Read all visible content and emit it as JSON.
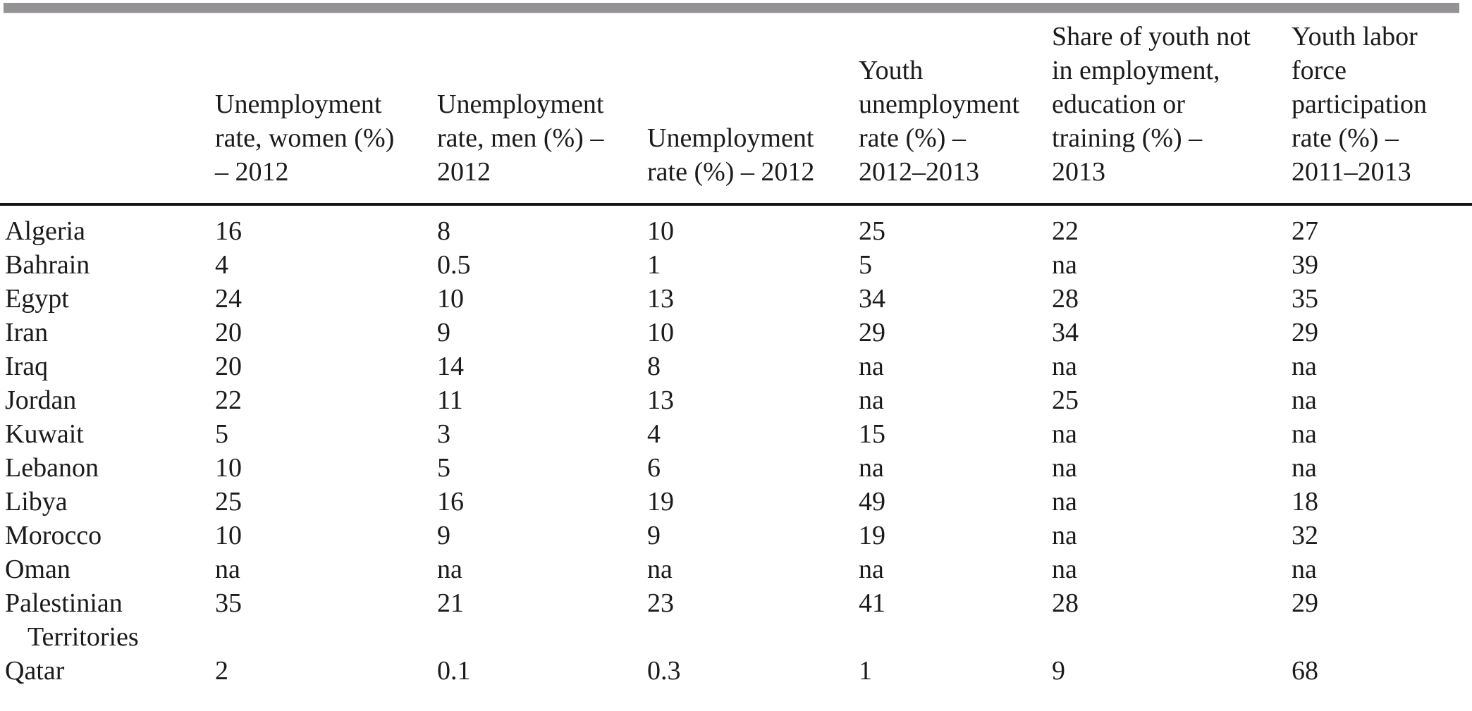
{
  "page": {
    "background": "#ffffff",
    "top_bar_color": "#949294",
    "rule_color": "#151515",
    "text_color": "#1b1b1b"
  },
  "table": {
    "columns": [
      {
        "key": "country",
        "label": ""
      },
      {
        "key": "unemployment_rate_women",
        "label": "Unemployment\nrate, women (%)\n– 2012"
      },
      {
        "key": "unemployment_rate_men",
        "label": "Unemployment\nrate, men (%) –\n2012"
      },
      {
        "key": "unemployment_rate_total",
        "label": "Unemployment\nrate (%) – 2012"
      },
      {
        "key": "youth_unemployment_rate",
        "label": "Youth\nunemployment\nrate (%) –\n2012–2013"
      },
      {
        "key": "youth_neet_share",
        "label": "Share of youth not\nin employment,\neducation or\ntraining (%) –\n2013"
      },
      {
        "key": "youth_labor_force_participation",
        "label": "Youth labor\nforce\nparticipation\nrate (%) –\n2011–2013"
      }
    ],
    "rows": [
      {
        "country": "Algeria",
        "values": [
          "16",
          "8",
          "10",
          "25",
          "22",
          "27"
        ]
      },
      {
        "country": "Bahrain",
        "values": [
          "4",
          "0.5",
          "1",
          "5",
          "na",
          "39"
        ]
      },
      {
        "country": "Egypt",
        "values": [
          "24",
          "10",
          "13",
          "34",
          "28",
          "35"
        ]
      },
      {
        "country": "Iran",
        "values": [
          "20",
          "9",
          "10",
          "29",
          "34",
          "29"
        ]
      },
      {
        "country": "Iraq",
        "values": [
          "20",
          "14",
          "8",
          "na",
          "na",
          "na"
        ]
      },
      {
        "country": "Jordan",
        "values": [
          "22",
          "11",
          "13",
          "na",
          "25",
          "na"
        ]
      },
      {
        "country": "Kuwait",
        "values": [
          "5",
          "3",
          "4",
          "15",
          "na",
          "na"
        ]
      },
      {
        "country": "Lebanon",
        "values": [
          "10",
          "5",
          "6",
          "na",
          "na",
          "na"
        ]
      },
      {
        "country": "Libya",
        "values": [
          "25",
          "16",
          "19",
          "49",
          "na",
          "18"
        ]
      },
      {
        "country": "Morocco",
        "values": [
          "10",
          "9",
          "9",
          "19",
          "na",
          "32"
        ]
      },
      {
        "country": "Oman",
        "values": [
          "na",
          "na",
          "na",
          "na",
          "na",
          "na"
        ]
      },
      {
        "country": "Palestinian Territories",
        "values": [
          "35",
          "21",
          "23",
          "41",
          "28",
          "29"
        ]
      },
      {
        "country": "Qatar",
        "values": [
          "2",
          "0.1",
          "0.3",
          "1",
          "9",
          "68"
        ]
      }
    ]
  }
}
